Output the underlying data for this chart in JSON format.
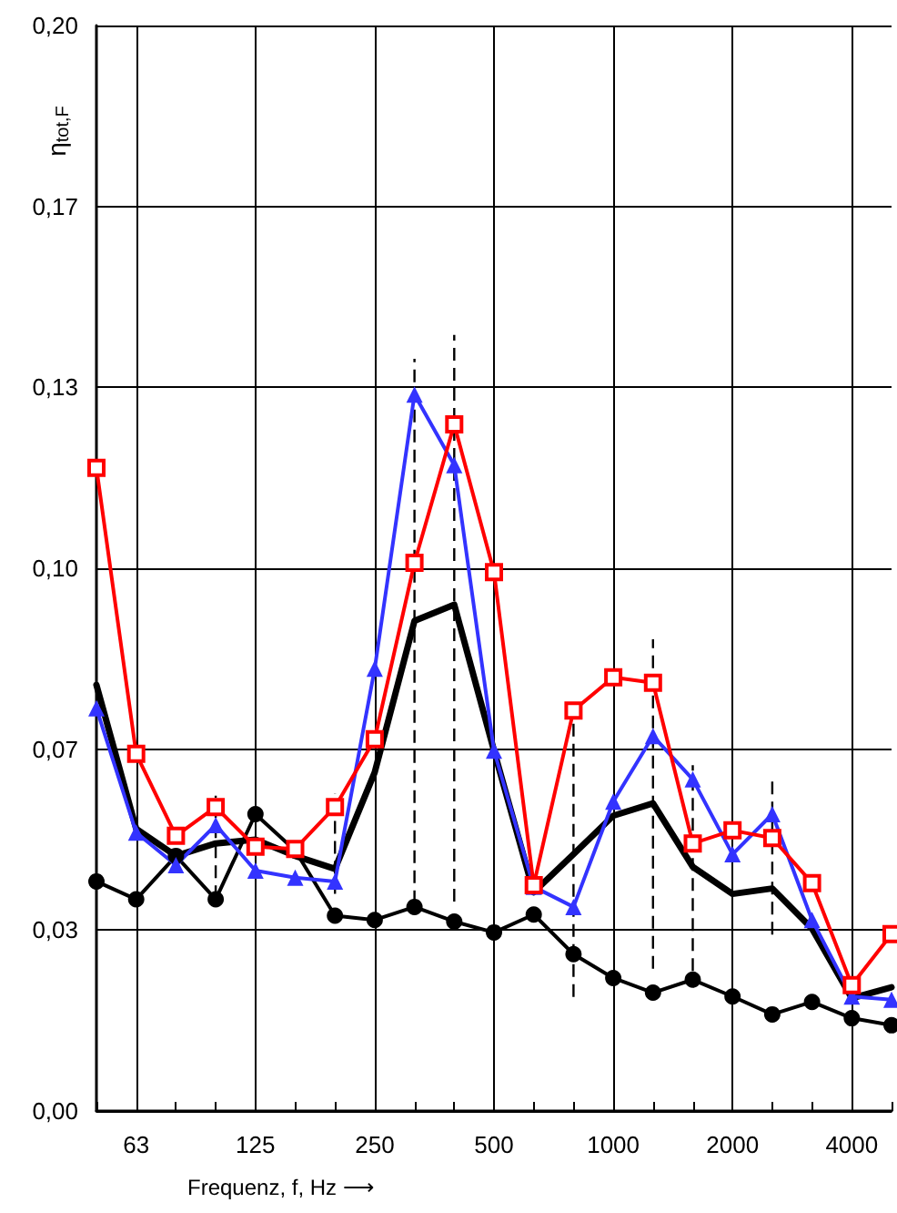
{
  "chart_data": {
    "type": "line",
    "xlabel": "Frequenz, f, Hz ⟶",
    "ylabel": "η$_{tot,F}$",
    "categories": [
      null,
      "63",
      null,
      null,
      "125",
      null,
      null,
      "250",
      null,
      null,
      "500",
      null,
      null,
      "1000",
      null,
      null,
      "2000",
      null,
      null,
      "4000",
      null
    ],
    "ylim": [
      0,
      0.2
    ],
    "yticks": [
      {
        "value": 0,
        "label": "0,00"
      },
      {
        "value": 0.03333,
        "label": "0,03"
      },
      {
        "value": 0.06667,
        "label": "0,07"
      },
      {
        "value": 0.1,
        "label": "0,10"
      },
      {
        "value": 0.13333,
        "label": "0,13"
      },
      {
        "value": 0.16667,
        "label": "0,17"
      },
      {
        "value": 0.2,
        "label": "0,20"
      }
    ],
    "grid": true,
    "line_style": "solid",
    "series": [
      {
        "color": "#000000",
        "marker": "circle",
        "values": [
          0.0423,
          0.039,
          0.047,
          0.039,
          0.0547,
          0.048,
          0.036,
          0.0352,
          0.0376,
          0.0349,
          0.0329,
          0.0362,
          0.0289,
          0.0245,
          0.0218,
          0.0242,
          0.0211,
          0.0178,
          0.0201,
          0.0171,
          0.0158
        ]
      },
      {
        "color": "#3333ff",
        "marker": "triangle",
        "values": [
          0.0742,
          0.0513,
          0.0453,
          0.0527,
          0.0443,
          0.043,
          0.0423,
          0.0815,
          0.132,
          0.119,
          0.0664,
          0.0413,
          0.0376,
          0.057,
          0.0691,
          0.0611,
          0.0473,
          0.0547,
          0.0352,
          0.0211,
          0.0205
        ]
      },
      {
        "color": "#ff0000",
        "marker": "square",
        "values": [
          0.1185,
          0.0658,
          0.0507,
          0.056,
          0.0487,
          0.0483,
          0.056,
          0.0685,
          0.101,
          0.1265,
          0.0993,
          0.0416,
          0.0738,
          0.0799,
          0.0789,
          0.0493,
          0.0517,
          0.0503,
          0.042,
          0.0232,
          0.0326
        ]
      },
      {
        "color": "#000000",
        "marker": "none",
        "values": [
          0.0785,
          0.052,
          0.047,
          0.0493,
          0.05,
          0.047,
          0.0446,
          0.0624,
          0.0903,
          0.0933,
          0.0664,
          0.0403,
          0.0473,
          0.0544,
          0.0567,
          0.045,
          0.04,
          0.041,
          0.0336,
          0.0208,
          0.0228
        ],
        "errors": [
          null,
          null,
          null,
          [
            0.0392,
            0.0581
          ],
          null,
          null,
          [
            0.04,
            0.0585
          ],
          null,
          [
            0.0383,
            0.1386
          ],
          [
            0.0386,
            0.143
          ],
          null,
          null,
          [
            0.021,
            0.0738
          ],
          null,
          [
            0.0262,
            0.0869
          ],
          [
            0.0258,
            0.0637
          ],
          null,
          [
            0.0325,
            0.0614
          ],
          null,
          null,
          null
        ]
      }
    ]
  }
}
